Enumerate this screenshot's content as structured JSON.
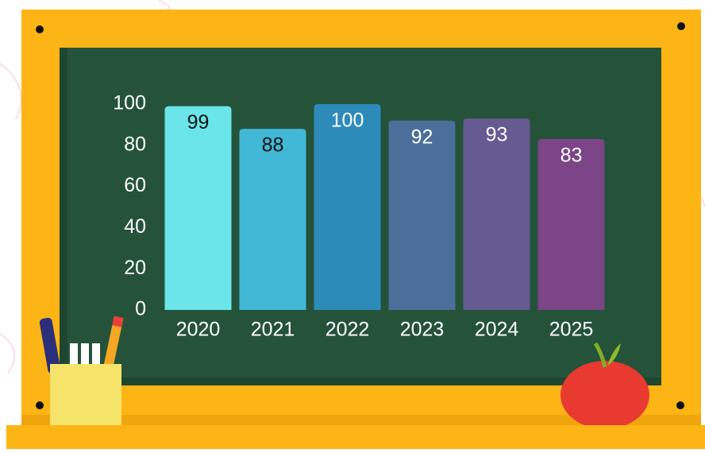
{
  "chart_data": {
    "type": "bar",
    "categories": [
      "2020",
      "2021",
      "2022",
      "2023",
      "2024",
      "2025"
    ],
    "values": [
      99,
      88,
      100,
      92,
      93,
      83
    ],
    "colors": [
      "#6ae5e9",
      "#41b8d6",
      "#2d8bba",
      "#4b6f9a",
      "#655a91",
      "#7c4588"
    ],
    "label_colors": [
      "#111111",
      "#111111",
      "#ffffff",
      "#ffffff",
      "#ffffff",
      "#ffffff"
    ],
    "ylim": [
      0,
      100
    ],
    "yticks": [
      0,
      20,
      40,
      60,
      80,
      100
    ],
    "grid": false
  }
}
